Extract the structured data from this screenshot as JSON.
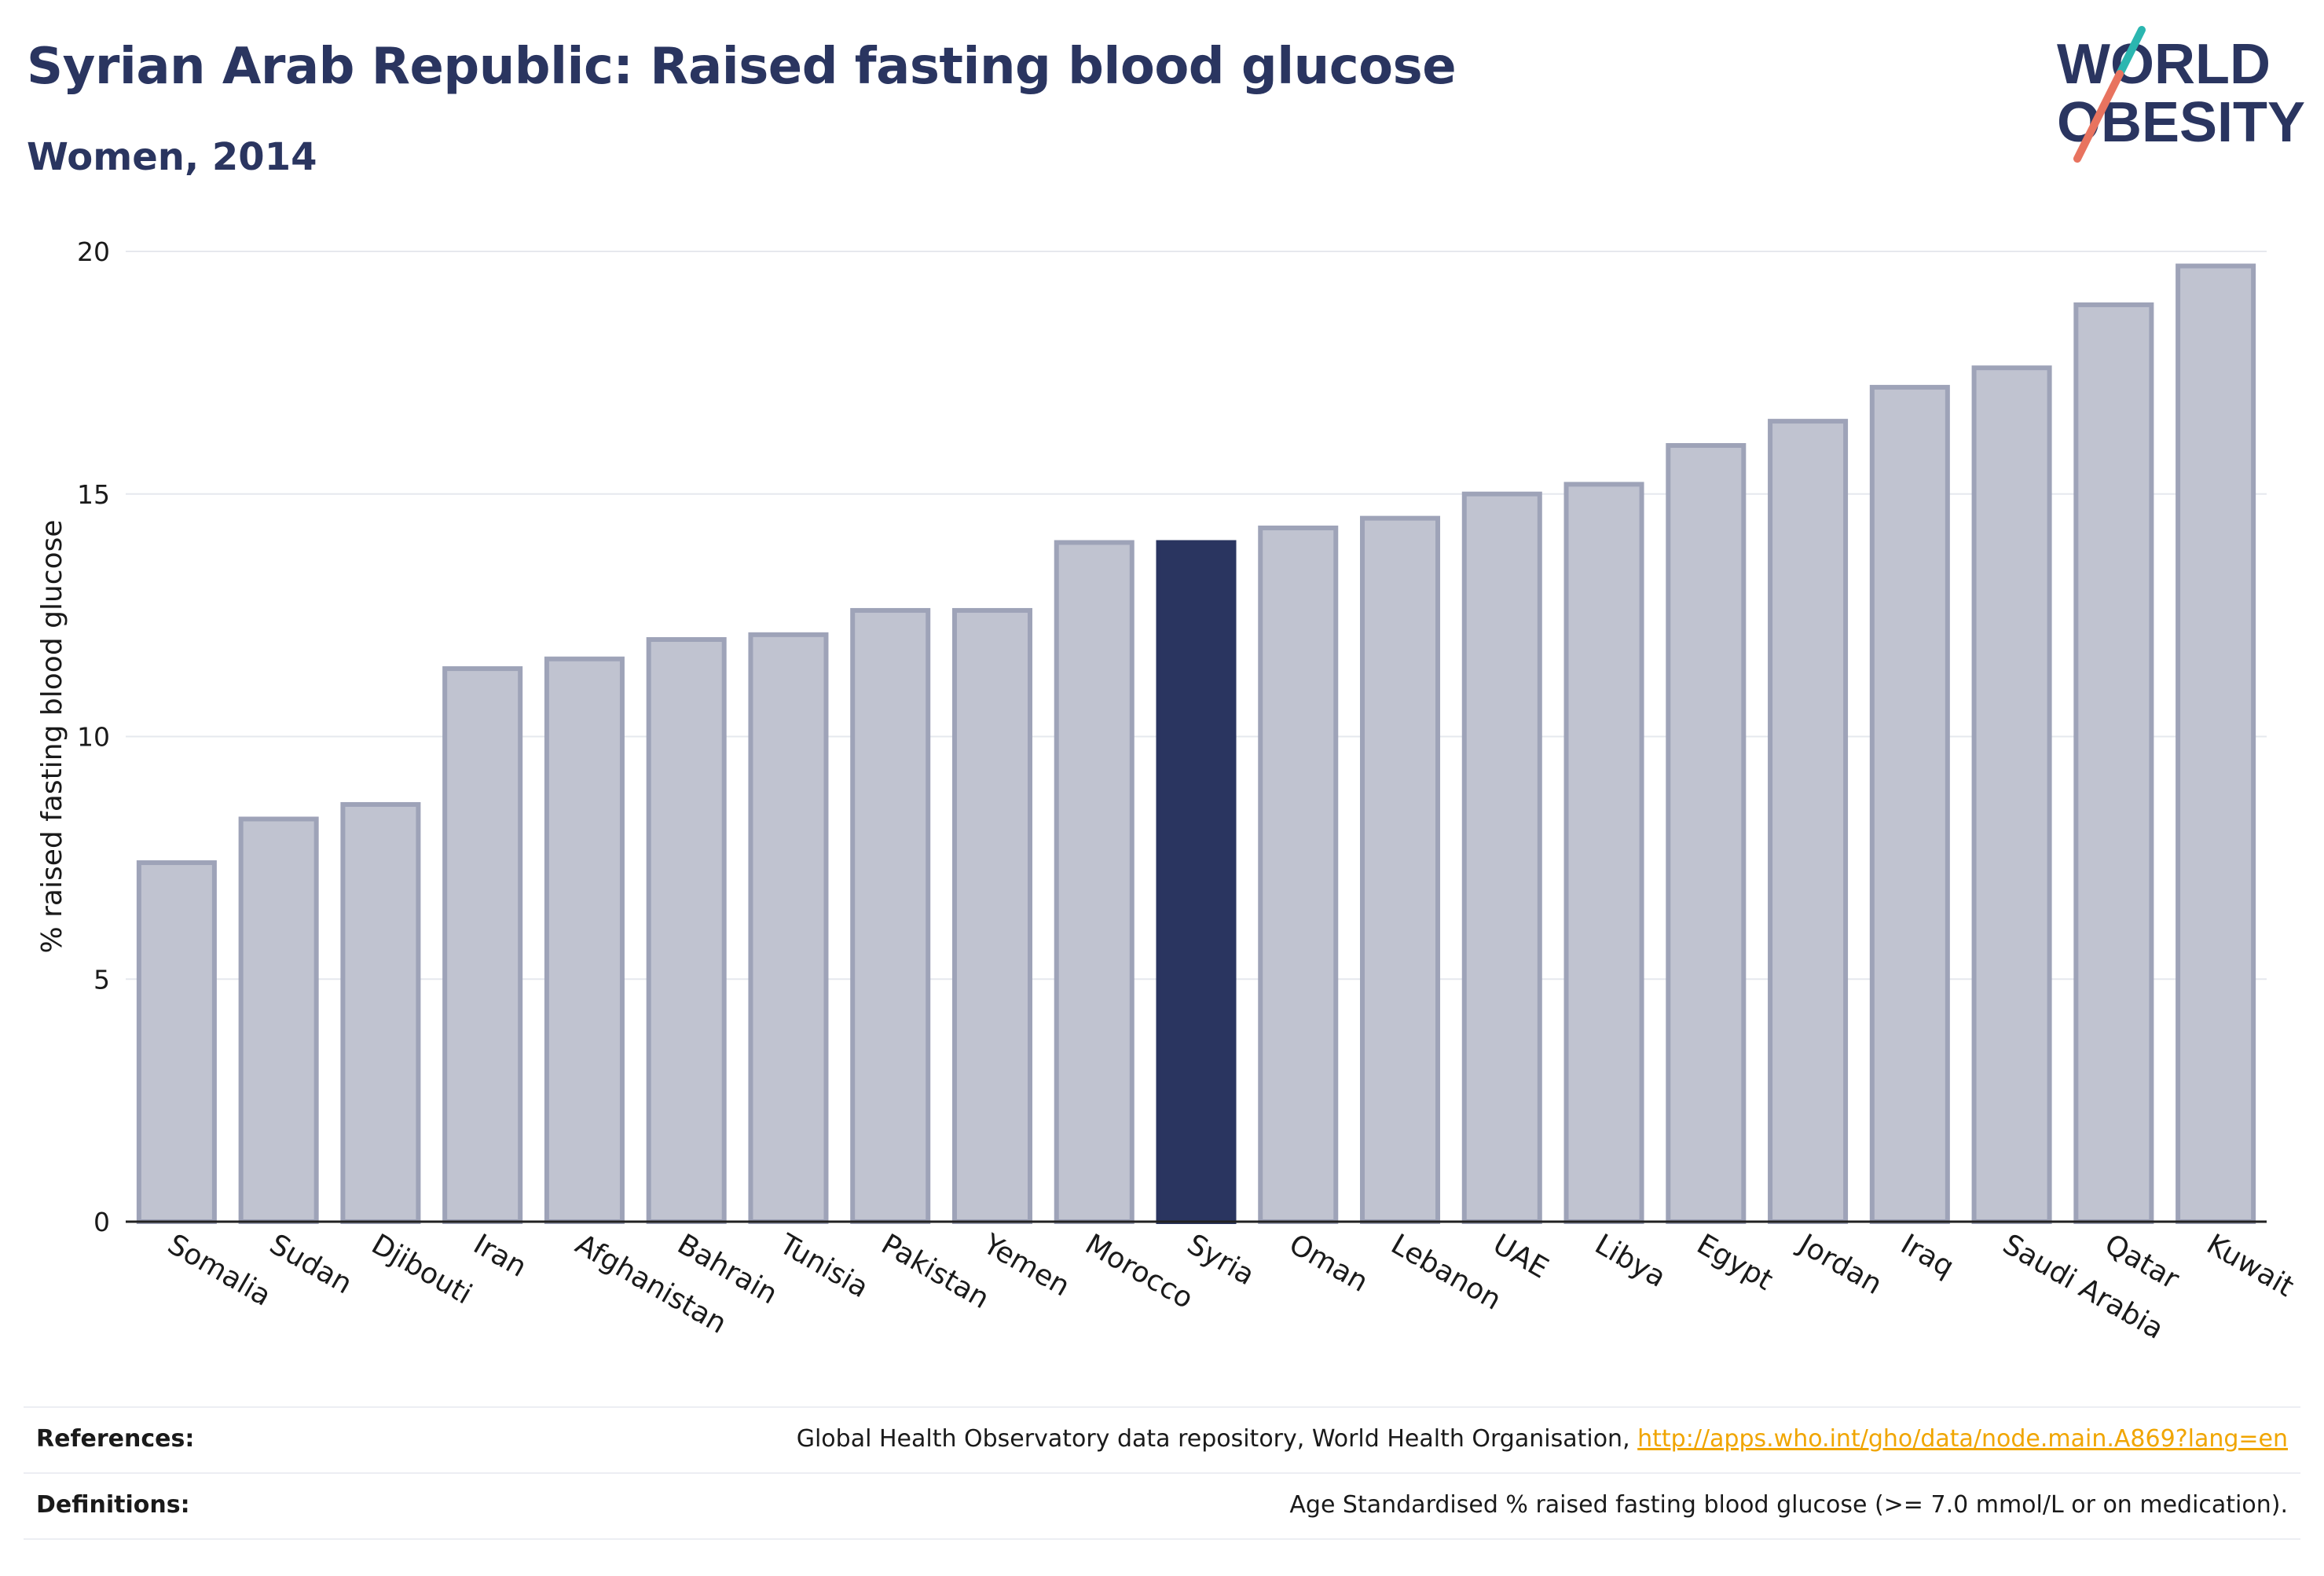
{
  "header": {
    "title": "Syrian Arab Republic: Raised fasting blood glucose",
    "subtitle": "Women, 2014"
  },
  "logo": {
    "line1": "WORLD",
    "line2": "OBESITY",
    "colors": {
      "text": "#2a3560",
      "slash_top": "#2bb6b0",
      "slash_bottom": "#e8735f"
    }
  },
  "chart_data": {
    "type": "bar",
    "title": "Syrian Arab Republic: Raised fasting blood glucose",
    "subtitle": "Women, 2014",
    "xlabel": "",
    "ylabel": "% raised fasting blood glucose",
    "ylim": [
      0,
      20
    ],
    "yticks": [
      0,
      5,
      10,
      15,
      20
    ],
    "grid": true,
    "highlight": "Syria",
    "colors": {
      "bar": "#c0c3d0",
      "bar_edge": "#9ea3b8",
      "highlight": "#2a3560",
      "grid": "#e6e8ee"
    },
    "categories": [
      "Somalia",
      "Sudan",
      "Djibouti",
      "Iran",
      "Afghanistan",
      "Bahrain",
      "Tunisia",
      "Pakistan",
      "Yemen",
      "Morocco",
      "Syria",
      "Oman",
      "Lebanon",
      "UAE",
      "Libya",
      "Egypt",
      "Jordan",
      "Iraq",
      "Saudi Arabia",
      "Qatar",
      "Kuwait"
    ],
    "values": [
      7.4,
      8.3,
      8.6,
      11.4,
      11.6,
      12.0,
      12.1,
      12.6,
      12.6,
      14.0,
      14.0,
      14.3,
      14.5,
      15.0,
      15.2,
      16.0,
      16.5,
      17.2,
      17.6,
      18.9,
      19.7
    ]
  },
  "footer": {
    "references_label": "References:",
    "references_text": "Global Health Observatory data repository, World Health Organisation, ",
    "references_link": "http://apps.who.int/gho/data/node.main.A869?lang=en",
    "definitions_label": "Definitions:",
    "definitions_text": "Age Standardised % raised fasting blood glucose (>= 7.0 mmol/L or on medication)."
  }
}
